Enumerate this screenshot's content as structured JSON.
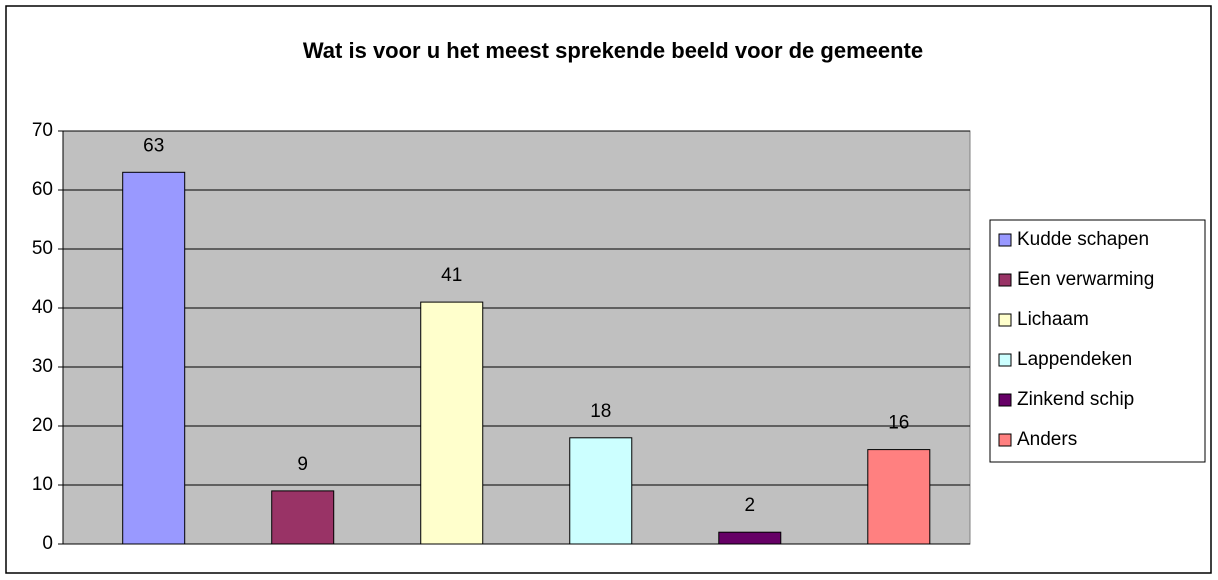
{
  "chart_data": {
    "type": "bar",
    "title": "Wat is voor u het meest sprekende beeld voor de gemeente",
    "series": [
      {
        "name": "Kudde schapen",
        "color": "#9999ff",
        "values": [
          63
        ]
      },
      {
        "name": "Een verwarming",
        "color": "#993366",
        "values": [
          9
        ]
      },
      {
        "name": "Lichaam",
        "color": "#ffffcc",
        "values": [
          41
        ]
      },
      {
        "name": "Lappendeken",
        "color": "#ccffff",
        "values": [
          18
        ]
      },
      {
        "name": "Zinkend schip",
        "color": "#660066",
        "values": [
          2
        ]
      },
      {
        "name": "Anders",
        "color": "#ff8080",
        "values": [
          16
        ]
      }
    ],
    "ylim": [
      0,
      70
    ],
    "yticks": [
      0,
      10,
      20,
      30,
      40,
      50,
      60,
      70
    ],
    "grid": true,
    "legend": "right",
    "plot_background": "#c0c0c0"
  }
}
